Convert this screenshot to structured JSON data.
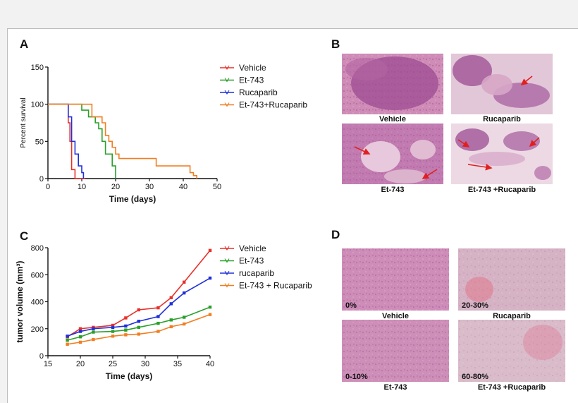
{
  "colors": {
    "vehicle": "#e8302a",
    "et743": "#2aa02a",
    "rucaparib": "#2030d8",
    "combo": "#f07f22",
    "arrow": "#e02020",
    "tissue_pink": "#d9a3c3",
    "tissue_purple": "#9a4d92"
  },
  "panels": {
    "a_letter": "A",
    "b_letter": "B",
    "c_letter": "C",
    "d_letter": "D"
  },
  "panel_b": {
    "captions": [
      "Vehicle",
      "Rucaparib",
      "Et-743",
      "Et-743 +Rucaparib"
    ]
  },
  "panel_d": {
    "captions": [
      "Vehicle",
      "Rucaparib",
      "Et-743",
      "Et-743 +Rucaparib"
    ],
    "percents": [
      "0%",
      "20-30%",
      "0-10%",
      "60-80%"
    ]
  },
  "chart_data": [
    {
      "id": "A",
      "type": "line",
      "title": "",
      "xlabel": "Time (days)",
      "ylabel": "Percent survival",
      "xlim": [
        0,
        50
      ],
      "ylim": [
        0,
        150
      ],
      "xticks": [
        "0",
        "10",
        "20",
        "30",
        "40",
        "50"
      ],
      "yticks": [
        "0",
        "50",
        "100",
        "150"
      ],
      "legend_position": "top-right",
      "series": [
        {
          "name": "Vehicle",
          "color_key": "vehicle",
          "x": [
            0,
            5.5,
            6,
            6.5,
            7,
            8,
            11
          ],
          "y": [
            100,
            100,
            75,
            50,
            12,
            0,
            0
          ]
        },
        {
          "name": "Et-743",
          "color_key": "et743",
          "x": [
            0,
            6.5,
            10,
            12,
            14,
            15,
            16,
            17,
            19,
            20
          ],
          "y": [
            100,
            100,
            92,
            83,
            75,
            67,
            50,
            33,
            17,
            0
          ]
        },
        {
          "name": "Rucaparib",
          "color_key": "rucaparib",
          "x": [
            0,
            5.5,
            6,
            7,
            8,
            9,
            10,
            10.5
          ],
          "y": [
            100,
            100,
            83,
            50,
            33,
            17,
            8,
            0
          ]
        },
        {
          "name": "Et-743+Rucaparib",
          "color_key": "combo",
          "x": [
            0,
            12,
            13,
            15,
            16,
            17,
            18,
            19,
            20,
            21,
            32,
            42,
            43,
            44
          ],
          "y": [
            100,
            100,
            83,
            83,
            75,
            58,
            50,
            42,
            33,
            27,
            17,
            8,
            4,
            0
          ]
        }
      ]
    },
    {
      "id": "C",
      "type": "line",
      "title": "",
      "xlabel": "Time (days)",
      "ylabel": "tumor volume (mm³)",
      "xlim": [
        15,
        40
      ],
      "ylim": [
        0,
        800
      ],
      "xticks": [
        "15",
        "20",
        "25",
        "30",
        "35",
        "40"
      ],
      "yticks": [
        "0",
        "200",
        "400",
        "600",
        "800"
      ],
      "legend_position": "top-right",
      "x": [
        18,
        20,
        22,
        25,
        27,
        29,
        32,
        34,
        36,
        40
      ],
      "series": [
        {
          "name": "Vehicle",
          "color_key": "vehicle",
          "values": [
            140,
            200,
            210,
            225,
            280,
            340,
            355,
            430,
            545,
            780
          ]
        },
        {
          "name": "Et-743",
          "color_key": "et743",
          "values": [
            115,
            140,
            175,
            180,
            190,
            210,
            240,
            265,
            285,
            360
          ]
        },
        {
          "name": "rucaparib",
          "color_key": "rucaparib",
          "values": [
            145,
            180,
            200,
            210,
            220,
            255,
            290,
            385,
            465,
            575
          ]
        },
        {
          "name": "Et-743 + Rucaparib",
          "color_key": "combo",
          "values": [
            85,
            100,
            120,
            145,
            155,
            160,
            180,
            215,
            235,
            305
          ]
        }
      ]
    }
  ]
}
